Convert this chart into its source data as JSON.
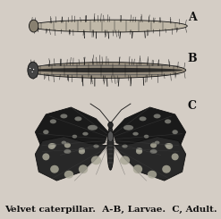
{
  "background_color": "#d4cdc5",
  "title_text": "Velvet caterpillar.  A-B, Larvae.  C, Adult.",
  "title_fontsize": 7.5,
  "label_A": "A",
  "label_B": "B",
  "label_C": "C",
  "label_fontsize": 9,
  "fig_width": 2.47,
  "fig_height": 2.45,
  "dpi": 100,
  "text_color": "#111111",
  "line_color": "#111111",
  "bg": "#d4cdc5"
}
